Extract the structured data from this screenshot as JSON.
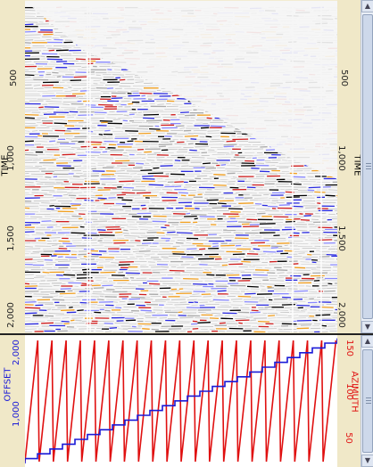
{
  "seismic_panel": {
    "left_axis_label": "TIME",
    "right_axis_label": "TIME",
    "ticks": [
      "500",
      "1,000",
      "1,500",
      "2,000"
    ],
    "colors": {
      "background": "#f1ecd0",
      "plot_bg": "#f7f7f7",
      "positive": "#000000",
      "negative": "#2b2be0",
      "hot": "#f2a020",
      "red": "#d02020"
    }
  },
  "geometry_panel": {
    "left_axis_label": "OFFSET",
    "left_ticks": [
      "1,000",
      "2,000"
    ],
    "right_axis_label": "AZIMUTH",
    "right_ticks": [
      "50",
      "100",
      "150"
    ],
    "offset_color": "#1a1ad8",
    "azimuth_color": "#e01010"
  },
  "scrollbars": {
    "top": {
      "up_arrow": "▲",
      "down_arrow": "▼"
    },
    "bottom": {
      "up_arrow": "▲",
      "down_arrow": "▼"
    }
  }
}
